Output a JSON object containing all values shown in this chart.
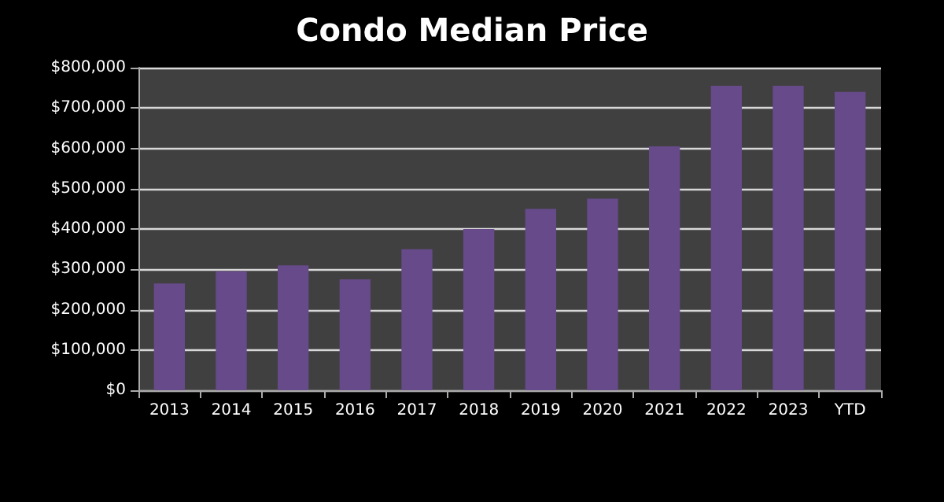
{
  "chart_data": {
    "type": "bar",
    "title": "Condo Median Price",
    "categories": [
      "2013",
      "2014",
      "2015",
      "2016",
      "2017",
      "2018",
      "2019",
      "2020",
      "2021",
      "2022",
      "2023",
      "YTD"
    ],
    "values": [
      265000,
      295000,
      310000,
      275000,
      350000,
      400000,
      450000,
      475000,
      605000,
      755000,
      755000,
      740000
    ],
    "color": "#674a8a",
    "ylim": [
      0,
      800000
    ],
    "yticks": [
      {
        "value": 0,
        "label": "$0"
      },
      {
        "value": 100000,
        "label": "$100,000"
      },
      {
        "value": 200000,
        "label": "$200,000"
      },
      {
        "value": 300000,
        "label": "$300,000"
      },
      {
        "value": 400000,
        "label": "$400,000"
      },
      {
        "value": 500000,
        "label": "$500,000"
      },
      {
        "value": 600000,
        "label": "$600,000"
      },
      {
        "value": 700000,
        "label": "$700,000"
      },
      {
        "value": 800000,
        "label": "$800,000"
      }
    ],
    "grid": "y"
  }
}
